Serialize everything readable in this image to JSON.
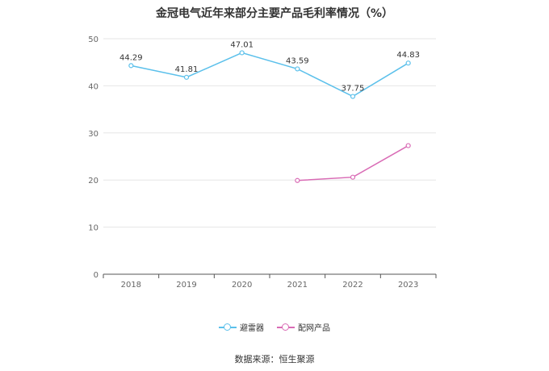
{
  "chart_data": {
    "type": "line",
    "title": "金冠电气近年来部分主要产品毛利率情况（%）",
    "categories": [
      "2018",
      "2019",
      "2020",
      "2021",
      "2022",
      "2023"
    ],
    "ylim": [
      0,
      50
    ],
    "yticks": [
      0,
      10,
      20,
      30,
      40,
      50
    ],
    "series": [
      {
        "name": "避雷器",
        "color": "#5bc0eb",
        "values": [
          44.29,
          41.81,
          47.01,
          43.59,
          37.75,
          44.83
        ],
        "labels": [
          "44.29",
          "41.81",
          "47.01",
          "43.59",
          "37.75",
          "44.83"
        ]
      },
      {
        "name": "配网产品",
        "color": "#d96bb5",
        "values": [
          null,
          null,
          null,
          19.9,
          20.6,
          27.3
        ]
      }
    ],
    "legend_position": "bottom"
  },
  "source": "数据来源：恒生聚源"
}
